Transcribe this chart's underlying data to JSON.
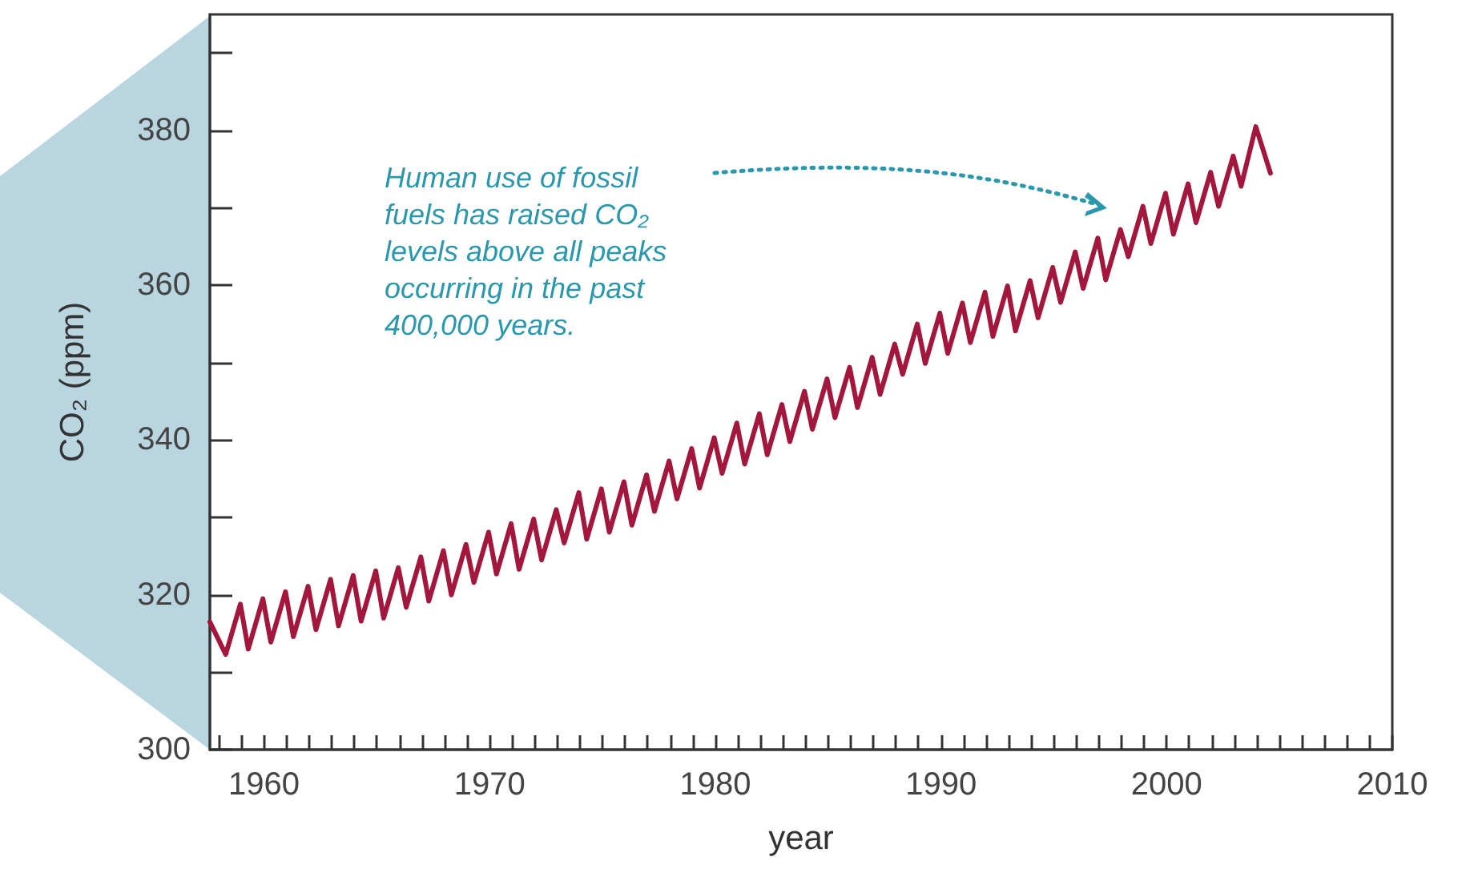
{
  "chart_data": {
    "type": "line",
    "xlabel": "year",
    "ylabel": "CO₂ (ppm)",
    "annotations": [
      "Human use of fossil fuels has raised CO₂ levels above all peaks occurring in the past 400,000 years."
    ],
    "xlim": [
      1957.6,
      2010
    ],
    "ylim": [
      300,
      395
    ],
    "xticks": [
      {
        "value": 1958,
        "label": null
      },
      {
        "value": 1959,
        "label": null
      },
      1960,
      {
        "value": 1961,
        "label": null
      },
      {
        "value": 1962,
        "label": null
      },
      {
        "value": 1963,
        "label": null
      },
      {
        "value": 1964,
        "label": null
      },
      {
        "value": 1965,
        "label": null
      },
      {
        "value": 1966,
        "label": null
      },
      {
        "value": 1967,
        "label": null
      },
      {
        "value": 1968,
        "label": null
      },
      {
        "value": 1969,
        "label": null
      },
      1970,
      {
        "value": 1971,
        "label": null
      },
      {
        "value": 1972,
        "label": null
      },
      {
        "value": 1973,
        "label": null
      },
      {
        "value": 1974,
        "label": null
      },
      {
        "value": 1975,
        "label": null
      },
      {
        "value": 1976,
        "label": null
      },
      {
        "value": 1977,
        "label": null
      },
      {
        "value": 1978,
        "label": null
      },
      {
        "value": 1979,
        "label": null
      },
      1980,
      {
        "value": 1981,
        "label": null
      },
      {
        "value": 1982,
        "label": null
      },
      {
        "value": 1983,
        "label": null
      },
      {
        "value": 1984,
        "label": null
      },
      {
        "value": 1985,
        "label": null
      },
      {
        "value": 1986,
        "label": null
      },
      {
        "value": 1987,
        "label": null
      },
      {
        "value": 1988,
        "label": null
      },
      {
        "value": 1989,
        "label": null
      },
      1990,
      {
        "value": 1991,
        "label": null
      },
      {
        "value": 1992,
        "label": null
      },
      {
        "value": 1993,
        "label": null
      },
      {
        "value": 1994,
        "label": null
      },
      {
        "value": 1995,
        "label": null
      },
      {
        "value": 1996,
        "label": null
      },
      {
        "value": 1997,
        "label": null
      },
      {
        "value": 1998,
        "label": null
      },
      {
        "value": 1999,
        "label": null
      },
      2000,
      {
        "value": 2001,
        "label": null
      },
      {
        "value": 2002,
        "label": null
      },
      {
        "value": 2003,
        "label": null
      },
      {
        "value": 2004,
        "label": null
      },
      {
        "value": 2005,
        "label": null
      },
      {
        "value": 2006,
        "label": null
      },
      {
        "value": 2007,
        "label": null
      },
      {
        "value": 2008,
        "label": null
      },
      {
        "value": 2009,
        "label": null
      },
      2010
    ],
    "yticks": [
      300,
      {
        "value": 310,
        "label": null
      },
      320,
      {
        "value": 330,
        "label": null
      },
      340,
      {
        "value": 350,
        "label": null
      },
      360,
      {
        "value": 370,
        "label": null
      },
      380,
      {
        "value": 390,
        "label": null
      }
    ],
    "grid": false,
    "marker": "none",
    "line_style": "solid",
    "series": [
      {
        "color": "#a3173c",
        "x": [
          1957.6,
          1958.3,
          1958.95,
          1959.3,
          1959.95,
          1960.3,
          1960.95,
          1961.3,
          1961.95,
          1962.3,
          1962.95,
          1963.3,
          1963.95,
          1964.3,
          1964.95,
          1965.3,
          1965.95,
          1966.3,
          1966.95,
          1967.3,
          1967.95,
          1968.3,
          1968.95,
          1969.3,
          1969.95,
          1970.3,
          1970.95,
          1971.3,
          1971.95,
          1972.3,
          1972.95,
          1973.3,
          1973.95,
          1974.3,
          1974.95,
          1975.3,
          1975.95,
          1976.3,
          1976.95,
          1977.3,
          1977.95,
          1978.3,
          1978.95,
          1979.3,
          1979.95,
          1980.3,
          1980.95,
          1981.3,
          1981.95,
          1982.3,
          1982.95,
          1983.3,
          1983.95,
          1984.3,
          1984.95,
          1985.3,
          1985.95,
          1986.3,
          1986.95,
          1987.3,
          1987.95,
          1988.3,
          1988.95,
          1989.3,
          1989.95,
          1990.3,
          1990.95,
          1991.3,
          1991.95,
          1992.3,
          1992.95,
          1993.3,
          1993.95,
          1994.3,
          1994.95,
          1995.3,
          1995.95,
          1996.3,
          1996.95,
          1997.3,
          1997.95,
          1998.3,
          1998.95,
          1999.3,
          1999.95,
          2000.3,
          2000.95,
          2001.3,
          2001.95,
          2002.3,
          2002.95,
          2003.3,
          2003.95,
          2004.6
        ],
        "values": [
          316.5,
          312.3,
          318.8,
          313.0,
          319.5,
          313.9,
          320.4,
          314.6,
          321.1,
          315.5,
          322.0,
          316.0,
          322.5,
          316.6,
          323.1,
          317.0,
          323.5,
          318.4,
          324.9,
          319.2,
          325.7,
          320.0,
          326.5,
          321.6,
          328.1,
          322.7,
          329.2,
          323.3,
          329.8,
          324.5,
          331.0,
          326.7,
          333.2,
          327.2,
          333.7,
          328.1,
          334.6,
          329.0,
          335.5,
          330.8,
          337.3,
          332.4,
          338.9,
          333.8,
          340.3,
          335.7,
          342.2,
          336.9,
          343.4,
          338.1,
          344.6,
          339.8,
          346.3,
          341.4,
          347.9,
          342.9,
          349.4,
          344.2,
          350.7,
          345.9,
          352.4,
          348.5,
          355.0,
          349.9,
          356.4,
          351.2,
          357.7,
          352.6,
          359.1,
          353.4,
          359.9,
          354.1,
          360.6,
          355.8,
          362.3,
          357.8,
          364.3,
          359.6,
          366.1,
          360.7,
          367.2,
          363.7,
          370.2,
          365.4,
          371.9,
          366.6,
          373.1,
          368.1,
          374.6,
          370.2,
          376.7,
          372.8,
          380.5,
          374.5
        ]
      }
    ]
  }
}
